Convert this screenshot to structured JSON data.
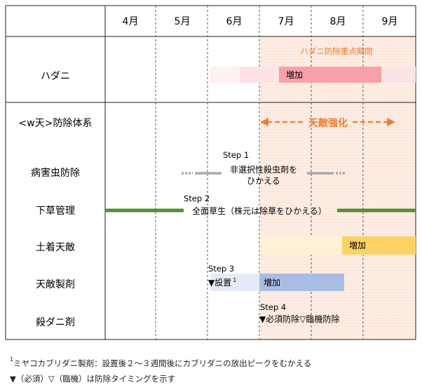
{
  "months": [
    "4月",
    "5月",
    "6月",
    "7月",
    "8月",
    "9月"
  ],
  "rows": [
    {
      "id": "hadani",
      "label": "ハダニ"
    },
    {
      "id": "system",
      "label": "<w天>防除体系"
    },
    {
      "id": "pest",
      "label": "病害虫防除"
    },
    {
      "id": "weed",
      "label": "下草管理"
    },
    {
      "id": "soil",
      "label": "土着天敵"
    },
    {
      "id": "agent",
      "label": "天敵製剤"
    },
    {
      "id": "acaricide",
      "label": "殺ダニ剤"
    }
  ],
  "focus_period": {
    "label": "ハダニ防除重点期間",
    "start_month": 7,
    "end_month": 9
  },
  "hadani": {
    "label": "増加"
  },
  "enhance": {
    "label": "天敵強化"
  },
  "step1": {
    "step": "Step 1",
    "line1": "非選択性殺虫剤を",
    "line2": "ひかえる"
  },
  "step2": {
    "step": "Step 2",
    "text": "全面草生（株元は除草をひかえる）"
  },
  "soil": {
    "label": "増加"
  },
  "step3": {
    "step": "Step 3",
    "text": "▼設置",
    "sup": "1",
    "increase": "増加"
  },
  "step4": {
    "step": "Step 4",
    "text": "▼必須防除▽臨機防除"
  },
  "footnotes": {
    "note1_sup": "1",
    "note1": "ミヤコカブリダニ製剤：設置後２～３週間後にカブリダニの放出ピークをむかえる",
    "note2": "▼（必須）▽（臨機）は防除タイミングを示す"
  },
  "colors": {
    "focus_fill": "#fdeee6",
    "focus_dot": "#f0a070",
    "orange": "#ef7d2e",
    "hadani_main": "#f7a0aa",
    "hadani_light": "#fde3e6",
    "hadani_pale": "#fff0f2",
    "weed": "#5b8a33",
    "soil_light": "#fdf1d8",
    "soil_main": "#fcd265",
    "agent_light": "#e6ecf7",
    "agent_main": "#a9bde4",
    "gray": "#aaaaaa"
  }
}
